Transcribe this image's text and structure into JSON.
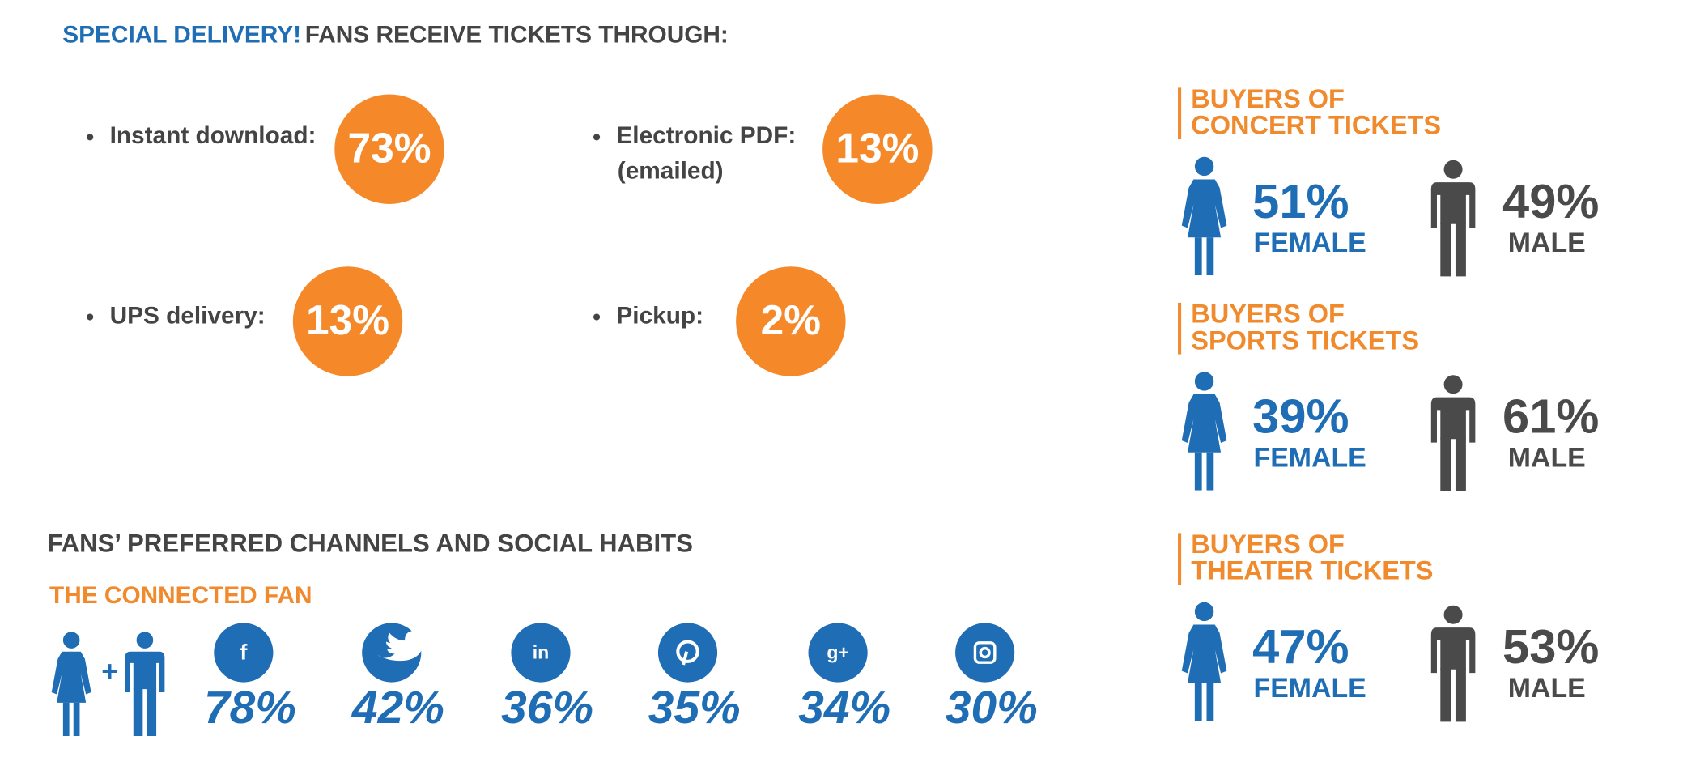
{
  "header": {
    "highlight": "SPECIAL DELIVERY!",
    "title": "FANS RECEIVE TICKETS THROUGH:"
  },
  "delivery": [
    {
      "label": "Instant download:",
      "value": "73%"
    },
    {
      "label": "Electronic PDF:",
      "note": "(emailed)",
      "value": "13%"
    },
    {
      "label": "UPS delivery:",
      "value": "13%"
    },
    {
      "label": "Pickup:",
      "value": "2%"
    }
  ],
  "social": {
    "title": "FANS’ PREFERRED CHANNELS AND SOCIAL HABITS",
    "subtitle": "THE CONNECTED FAN",
    "plus": "+",
    "channels": [
      {
        "icon": "f",
        "value": "78%"
      },
      {
        "value": "42%"
      },
      {
        "icon": "in",
        "value": "36%"
      },
      {
        "value": "35%"
      },
      {
        "icon": "g+",
        "value": "34%"
      },
      {
        "value": "30%"
      }
    ]
  },
  "buyers": [
    {
      "line1": "BUYERS OF",
      "line2": "CONCERT TICKETS",
      "female_value": "51%",
      "female_label": "FEMALE",
      "male_value": "49%",
      "male_label": "MALE"
    },
    {
      "line1": "BUYERS OF",
      "line2": "SPORTS TICKETS",
      "female_value": "39%",
      "female_label": "FEMALE",
      "male_value": "61%",
      "male_label": "MALE"
    },
    {
      "line1": "BUYERS OF",
      "line2": "THEATER TICKETS",
      "female_value": "47%",
      "female_label": "FEMALE",
      "male_value": "53%",
      "male_label": "MALE"
    }
  ]
}
